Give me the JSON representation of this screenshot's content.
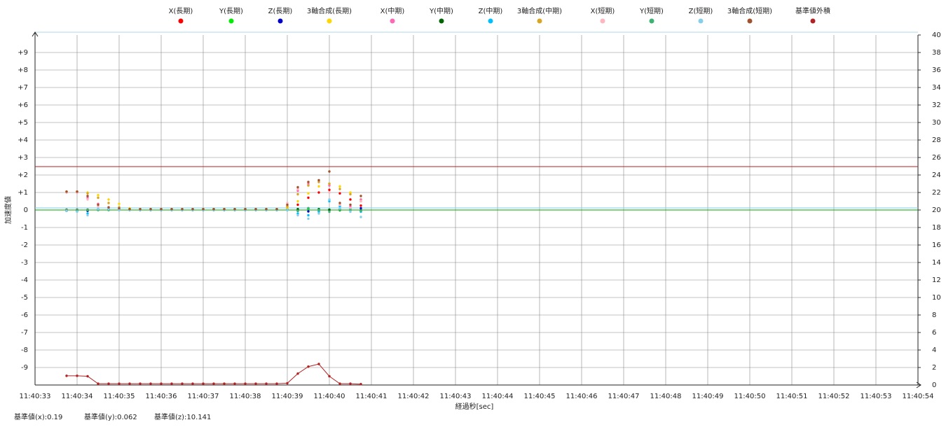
{
  "chart_data": {
    "type": "scatter",
    "y_label": "加速度値",
    "x_label": "経過秒[sec]",
    "annotations": [
      "基準値(x):0.19",
      "基準値(y):0.062",
      "基準値(z):10.141"
    ],
    "xlim": [
      "11:40:33",
      "11:40:54"
    ],
    "xticks": [
      "11:40:33",
      "11:40:34",
      "11:40:35",
      "11:40:36",
      "11:40:37",
      "11:40:38",
      "11:40:39",
      "11:40:40",
      "11:40:41",
      "11:40:42",
      "11:40:43",
      "11:40:44",
      "11:40:45",
      "11:40:46",
      "11:40:47",
      "11:40:48",
      "11:40:49",
      "11:40:50",
      "11:40:51",
      "11:40:52",
      "11:40:53",
      "11:40:54"
    ],
    "ylim": [
      -10,
      10
    ],
    "yticks": [
      {
        "value": -9,
        "label": "-9"
      },
      {
        "value": -8,
        "label": "-8"
      },
      {
        "value": -7,
        "label": "-7"
      },
      {
        "value": -6,
        "label": "-6"
      },
      {
        "value": -5,
        "label": "-5"
      },
      {
        "value": -4,
        "label": "-4"
      },
      {
        "value": -3,
        "label": "-3"
      },
      {
        "value": -2,
        "label": "-2"
      },
      {
        "value": -1,
        "label": "-1"
      },
      0,
      {
        "value": 1,
        "label": "+1"
      },
      {
        "value": 2,
        "label": "+2"
      },
      {
        "value": 3,
        "label": "+3"
      },
      {
        "value": 4,
        "label": "+4"
      },
      {
        "value": 5,
        "label": "+5"
      },
      {
        "value": 6,
        "label": "+6"
      },
      {
        "value": 7,
        "label": "+7"
      },
      {
        "value": 8,
        "label": "+8"
      },
      {
        "value": 9,
        "label": "+9"
      }
    ],
    "y2lim": [
      0,
      40
    ],
    "y2ticks": [
      0,
      2,
      4,
      6,
      8,
      10,
      12,
      14,
      16,
      18,
      20,
      22,
      24,
      26,
      28,
      30,
      32,
      34,
      36,
      38,
      40
    ],
    "grid": true,
    "reference_lines": [
      {
        "value": 2.48,
        "color": "#b22222"
      },
      {
        "value": 0.12,
        "color": "#87ceeb"
      },
      {
        "value": 0,
        "color": "#00aa00"
      }
    ],
    "x": [
      "11:40:33.75",
      "11:40:34.00",
      "11:40:34.25",
      "11:40:34.50",
      "11:40:34.75",
      "11:40:35.00",
      "11:40:35.25",
      "11:40:35.50",
      "11:40:35.75",
      "11:40:36.00",
      "11:40:36.25",
      "11:40:36.50",
      "11:40:36.75",
      "11:40:37.00",
      "11:40:37.25",
      "11:40:37.50",
      "11:40:37.75",
      "11:40:38.00",
      "11:40:38.25",
      "11:40:38.50",
      "11:40:38.75",
      "11:40:39.00",
      "11:40:39.25",
      "11:40:39.50",
      "11:40:39.75",
      "11:40:40.00",
      "11:40:40.25",
      "11:40:40.50",
      "11:40:40.75"
    ],
    "series": [
      {
        "name": "X(長期)",
        "color": "#ff0000",
        "values": [
          0.02,
          0.02,
          0.02,
          0.02,
          0.02,
          0.02,
          0.02,
          0.02,
          0.02,
          0.02,
          0.02,
          0.02,
          0.02,
          0.02,
          0.02,
          0.02,
          0.02,
          0.02,
          0.02,
          0.02,
          0.02,
          0.05,
          0.3,
          0.7,
          1.0,
          1.15,
          0.95,
          0.6,
          0.25
        ]
      },
      {
        "name": "Y(長期)",
        "color": "#00ee00",
        "values": [
          -0.02,
          -0.02,
          0,
          0.02,
          0.02,
          0.02,
          0,
          0,
          0,
          0,
          0,
          0,
          0,
          0,
          0,
          0,
          0,
          0,
          0,
          0,
          0,
          0,
          0.02,
          0.05,
          0.02,
          0,
          -0.02,
          -0.02,
          -0.05
        ]
      },
      {
        "name": "Z(長期)",
        "color": "#0000cc",
        "values": [
          -0.05,
          -0.05,
          -0.05,
          0.02,
          0.05,
          0.05,
          0.02,
          0,
          0,
          0,
          0,
          0,
          0,
          0,
          0,
          0,
          0,
          0,
          0,
          0,
          0,
          0.02,
          -0.05,
          -0.08,
          -0.05,
          0,
          0.05,
          0.08,
          0.1
        ]
      },
      {
        "name": "3軸合成(長期)",
        "color": "#ffd700",
        "values": [
          1.05,
          1.05,
          1.0,
          0.85,
          0.6,
          0.35,
          0.1,
          0.05,
          0.05,
          0.05,
          0.05,
          0.05,
          0.05,
          0.05,
          0.05,
          0.05,
          0.05,
          0.05,
          0.05,
          0.05,
          0.05,
          0.1,
          0.5,
          0.95,
          1.35,
          1.5,
          1.35,
          1.0,
          0.6
        ]
      },
      {
        "name": "X(中期)",
        "color": "#ff69b4",
        "values": [
          1.0,
          1.0,
          0.7,
          0.35,
          0.15,
          0.05,
          0.02,
          0.02,
          0.02,
          0.02,
          0.02,
          0.02,
          0.02,
          0.02,
          0.02,
          0.02,
          0.02,
          0.02,
          0.02,
          0.02,
          0.02,
          0.2,
          1.1,
          1.5,
          1.6,
          1.4,
          0.3,
          0.2,
          0.6
        ]
      },
      {
        "name": "Y(中期)",
        "color": "#006400",
        "values": [
          0,
          0,
          0,
          0,
          0,
          0,
          0,
          0,
          0,
          0,
          0,
          0,
          0,
          0,
          0,
          0,
          0,
          0,
          0,
          0,
          0,
          0,
          0.05,
          0.1,
          0.05,
          0.02,
          0,
          0,
          -0.02
        ]
      },
      {
        "name": "Z(中期)",
        "color": "#00bfff",
        "values": [
          -0.05,
          -0.05,
          -0.2,
          0.05,
          0.05,
          0.02,
          0,
          0,
          0,
          0,
          0,
          0,
          0,
          0,
          0,
          0,
          0,
          0,
          0,
          0,
          0,
          0,
          -0.2,
          -0.3,
          -0.1,
          0.5,
          0.2,
          0.05,
          -0.1
        ]
      },
      {
        "name": "3軸合成(中期)",
        "color": "#daa520",
        "values": [
          1.05,
          1.05,
          0.95,
          0.7,
          0.4,
          0.15,
          0.05,
          0.05,
          0.05,
          0.05,
          0.05,
          0.05,
          0.05,
          0.05,
          0.05,
          0.05,
          0.05,
          0.05,
          0.05,
          0.05,
          0.05,
          0.2,
          0.9,
          1.4,
          1.6,
          1.5,
          1.2,
          0.9,
          0.5
        ]
      },
      {
        "name": "X(短期)",
        "color": "#ffb6c1",
        "values": [
          1.0,
          1.0,
          0.6,
          0.2,
          0.1,
          0.02,
          0.02,
          0.02,
          0.02,
          0.02,
          0.02,
          0.02,
          0.02,
          0.02,
          0.02,
          0.02,
          0.02,
          0.02,
          0.02,
          0.02,
          0.02,
          0.4,
          1.2,
          1.6,
          1.7,
          1.0,
          0.3,
          0.1,
          0.5
        ]
      },
      {
        "name": "Y(短期)",
        "color": "#3cb371",
        "values": [
          0,
          0,
          0,
          0,
          0,
          0,
          0,
          0,
          0,
          0,
          0,
          0,
          0,
          0,
          0,
          0,
          0,
          0,
          0,
          0,
          0,
          0,
          -0.05,
          0.1,
          0,
          -0.1,
          0.02,
          0,
          -0.05
        ]
      },
      {
        "name": "Z(短期)",
        "color": "#87ceeb",
        "values": [
          -0.05,
          -0.1,
          -0.3,
          0.05,
          0.05,
          0,
          0,
          0,
          0,
          0,
          0,
          0,
          0,
          0,
          0,
          0,
          0,
          0,
          0,
          0,
          0,
          0,
          -0.3,
          -0.5,
          -0.2,
          0.6,
          0.1,
          -0.1,
          -0.4
        ]
      },
      {
        "name": "3軸合成(短期)",
        "color": "#a0522d",
        "values": [
          1.05,
          1.05,
          0.8,
          0.3,
          0.15,
          0.1,
          0.05,
          0.05,
          0.05,
          0.05,
          0.05,
          0.05,
          0.05,
          0.05,
          0.05,
          0.05,
          0.05,
          0.05,
          0.05,
          0.05,
          0.05,
          0.3,
          1.3,
          1.6,
          1.7,
          2.2,
          0.4,
          0.3,
          0.8
        ]
      },
      {
        "name": "基準値外積",
        "color": "#b22222",
        "axis": "y2",
        "values": [
          1.05,
          1.05,
          1.0,
          0.15,
          0.15,
          0.15,
          0.15,
          0.15,
          0.15,
          0.15,
          0.15,
          0.15,
          0.15,
          0.15,
          0.15,
          0.15,
          0.15,
          0.15,
          0.15,
          0.15,
          0.15,
          0.2,
          1.3,
          2.1,
          2.4,
          1.0,
          0.15,
          0.15,
          0.1
        ]
      }
    ]
  }
}
